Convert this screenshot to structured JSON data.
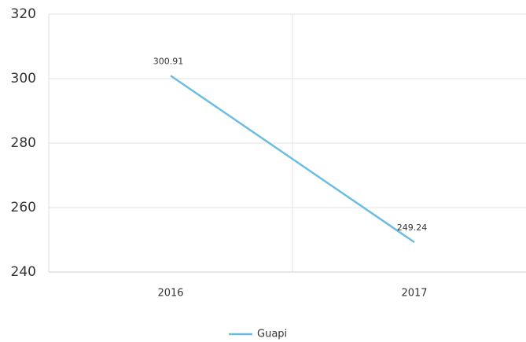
{
  "chart_data": {
    "type": "line",
    "categories": [
      "2016",
      "2017"
    ],
    "series": [
      {
        "name": "Guapi",
        "color": "#6dbde0",
        "values": [
          300.91,
          249.24
        ]
      }
    ],
    "ylim": [
      240,
      320
    ],
    "yticks": [
      240,
      260,
      280,
      300,
      320
    ],
    "grid": true,
    "legend": "bottom"
  }
}
